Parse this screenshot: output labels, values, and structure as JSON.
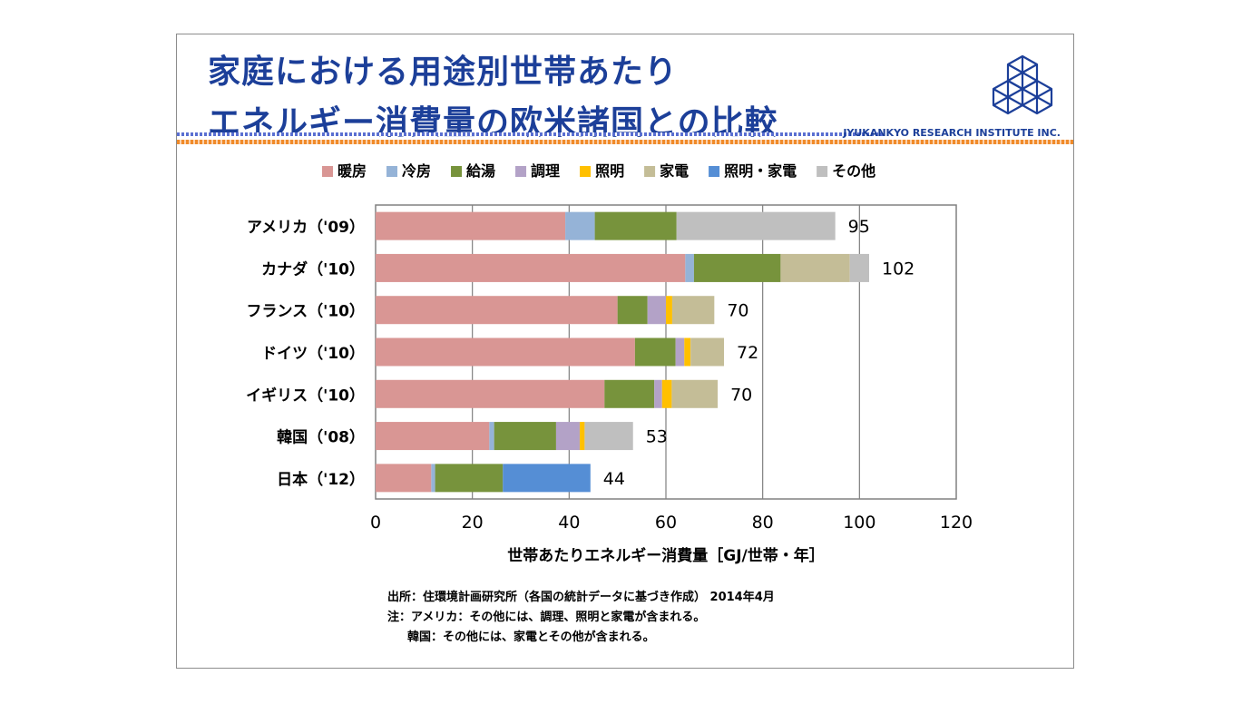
{
  "slide": {
    "title_line1": "家庭における用途別世帯あたり",
    "title_line2": "エネルギー消費量の欧米諸国との比較",
    "company": "JYUKANKYO RESEARCH INSTITUTE INC.",
    "colors": {
      "title": "#1c3f99",
      "stripe_blue": "#5a6fd1",
      "stripe_orange": "#f08b2a"
    }
  },
  "notes": {
    "source": "出所：住環境計画研究所（各国の統計データに基づき作成） 2014年4月",
    "note1": "注：アメリカ：その他には、調理、照明と家電が含まれる。",
    "note2": "韓国：その他には、家電とその他が含まれる。"
  },
  "chart_data": {
    "type": "bar",
    "orientation": "horizontal",
    "stacked": true,
    "categories": [
      "アメリカ（'09）",
      "カナダ（'10）",
      "フランス（'10）",
      "ドイツ（'10）",
      "イギリス（'10）",
      "韓国（'08）",
      "日本（'12）"
    ],
    "series": [
      {
        "name": "暖房",
        "color": "#d99694",
        "values": [
          39.2,
          64.0,
          50.0,
          53.6,
          47.3,
          23.5,
          11.5
        ]
      },
      {
        "name": "冷房",
        "color": "#95b3d7",
        "values": [
          6.1,
          1.8,
          0.0,
          0.0,
          0.0,
          1.0,
          0.8
        ]
      },
      {
        "name": "給湯",
        "color": "#77933c",
        "values": [
          16.9,
          17.9,
          6.2,
          8.4,
          10.3,
          12.8,
          14.0
        ]
      },
      {
        "name": "調理",
        "color": "#b3a2c7",
        "values": [
          0.0,
          0.0,
          3.8,
          1.8,
          1.6,
          4.9,
          0.0
        ]
      },
      {
        "name": "照明",
        "color": "#ffc000",
        "values": [
          0.0,
          0.0,
          1.3,
          1.3,
          2.0,
          1.0,
          0.0
        ]
      },
      {
        "name": "家電",
        "color": "#c4bd97",
        "values": [
          0.0,
          14.3,
          8.7,
          6.9,
          9.5,
          0.0,
          0.0
        ]
      },
      {
        "name": "照明・家電",
        "color": "#558ed5",
        "values": [
          0.0,
          0.0,
          0.0,
          0.0,
          0.0,
          0.0,
          18.1
        ]
      },
      {
        "name": "その他",
        "color": "#bfbfbf",
        "values": [
          32.8,
          4.0,
          0.0,
          0.0,
          0.0,
          10.0,
          0.0
        ]
      }
    ],
    "totals": [
      "95",
      "102",
      "70",
      "72",
      "70",
      "53",
      "44"
    ],
    "xlim": [
      0,
      120
    ],
    "xticks": [
      0,
      20,
      40,
      60,
      80,
      100,
      120
    ],
    "xlabel": "世帯あたりエネルギー消費量［GJ/世帯・年］",
    "grid": true,
    "legend_position": "top"
  }
}
